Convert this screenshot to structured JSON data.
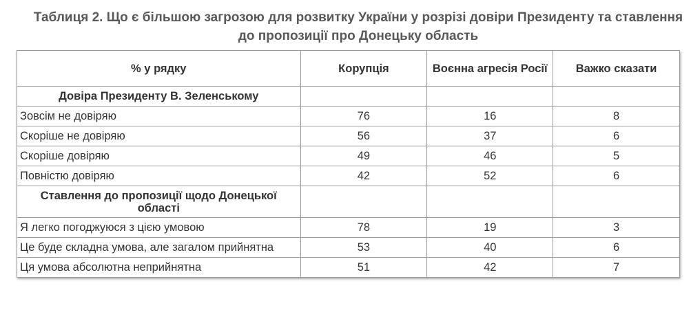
{
  "title": "Таблиця 2. Що є більшою загрозою для розвитку України у розрізі довіри Президенту та ставлення до пропозиції про Донецьку область",
  "headers": [
    "% у рядку",
    "Корупція",
    "Воєнна агресія Росії",
    "Важко сказати"
  ],
  "sections": [
    {
      "title": "Довіра Президенту В. Зеленському",
      "rows": [
        {
          "label": "Зовсім не довіряю",
          "values": [
            "76",
            "16",
            "8"
          ]
        },
        {
          "label": "Скоріше не довіряю",
          "values": [
            "56",
            "37",
            "6"
          ]
        },
        {
          "label": "Скоріше довіряю",
          "values": [
            "49",
            "46",
            "5"
          ]
        },
        {
          "label": "Повністю довіряю",
          "values": [
            "42",
            "52",
            "6"
          ]
        }
      ]
    },
    {
      "title": "Ставлення до пропозиції щодо Донецької області",
      "rows": [
        {
          "label": "Я легко погоджуюся з цією умовою",
          "values": [
            "78",
            "19",
            "3"
          ]
        },
        {
          "label": "Це буде складна умова, але загалом прийнятна",
          "values": [
            "53",
            "40",
            "6"
          ]
        },
        {
          "label": "Ця умова абсолютна неприйнятна",
          "values": [
            "51",
            "42",
            "7"
          ]
        }
      ]
    }
  ]
}
